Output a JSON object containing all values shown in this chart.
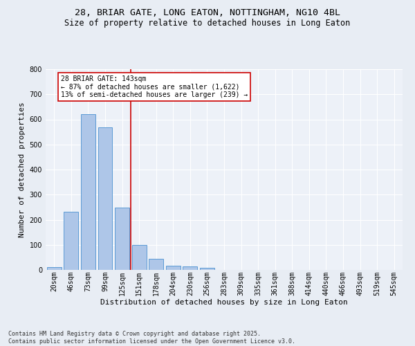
{
  "title1": "28, BRIAR GATE, LONG EATON, NOTTINGHAM, NG10 4BL",
  "title2": "Size of property relative to detached houses in Long Eaton",
  "xlabel": "Distribution of detached houses by size in Long Eaton",
  "ylabel": "Number of detached properties",
  "categories": [
    "20sqm",
    "46sqm",
    "73sqm",
    "99sqm",
    "125sqm",
    "151sqm",
    "178sqm",
    "204sqm",
    "230sqm",
    "256sqm",
    "283sqm",
    "309sqm",
    "335sqm",
    "361sqm",
    "388sqm",
    "414sqm",
    "440sqm",
    "466sqm",
    "493sqm",
    "519sqm",
    "545sqm"
  ],
  "values": [
    10,
    232,
    620,
    568,
    248,
    98,
    44,
    16,
    15,
    7,
    0,
    0,
    0,
    0,
    0,
    0,
    0,
    0,
    0,
    0,
    0
  ],
  "bar_color": "#aec6e8",
  "bar_edge_color": "#5b9bd5",
  "vline_x": 4.5,
  "vline_color": "#cc0000",
  "annotation_line1": "28 BRIAR GATE: 143sqm",
  "annotation_line2": "← 87% of detached houses are smaller (1,622)",
  "annotation_line3": "13% of semi-detached houses are larger (239) →",
  "annotation_box_color": "#cc0000",
  "annotation_box_facecolor": "white",
  "ylim": [
    0,
    800
  ],
  "yticks": [
    0,
    100,
    200,
    300,
    400,
    500,
    600,
    700,
    800
  ],
  "bg_color": "#e8edf4",
  "plot_bg_color": "#edf1f8",
  "grid_color": "white",
  "footnote": "Contains HM Land Registry data © Crown copyright and database right 2025.\nContains public sector information licensed under the Open Government Licence v3.0.",
  "title1_fontsize": 9.5,
  "title2_fontsize": 8.5,
  "xlabel_fontsize": 8,
  "ylabel_fontsize": 8,
  "tick_fontsize": 7,
  "annotation_fontsize": 7,
  "footnote_fontsize": 6
}
